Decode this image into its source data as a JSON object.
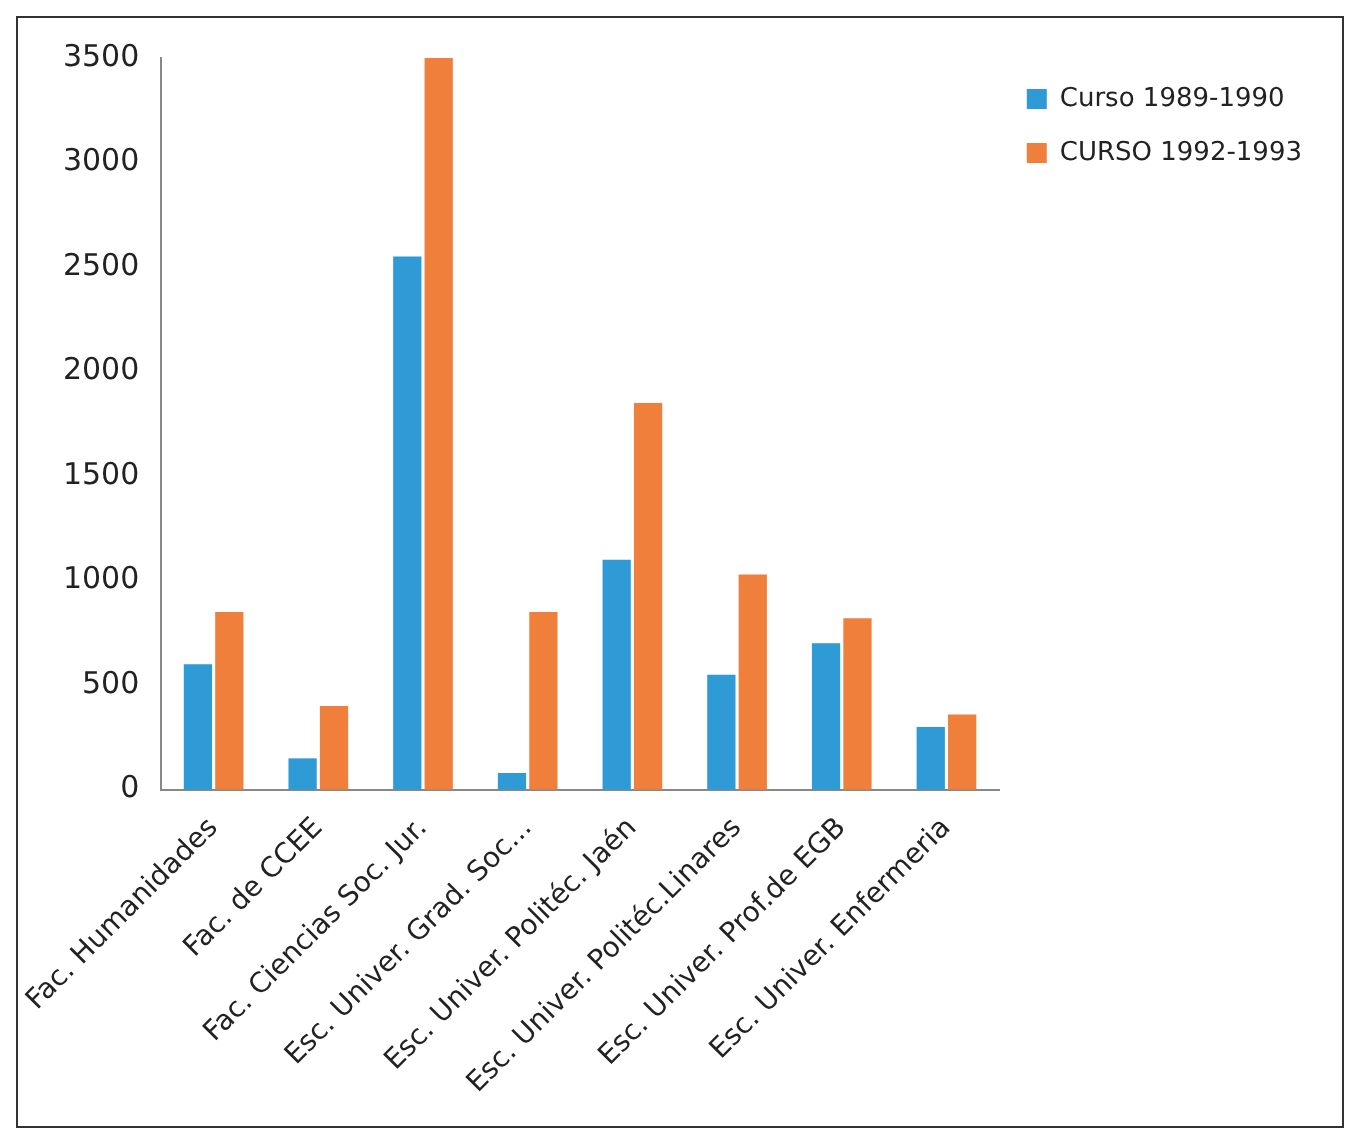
{
  "chart_data": {
    "type": "bar",
    "categories": [
      "Fac. Humanidades",
      "Fac. de CCEE",
      "Fac. Ciencias Soc. Jur.",
      "Esc. Univer. Grad. Soc...",
      "Esc. Univer. Politéc. Jaén",
      "Esc. Univer. Politéc.Linares",
      "Esc. Univer. Prof.de EGB",
      "Esc. Univer. Enfermeria"
    ],
    "series": [
      {
        "name": "Curso 1989-1990",
        "color": "#2e9bd6",
        "values": [
          600,
          150,
          2550,
          80,
          1100,
          550,
          700,
          300
        ]
      },
      {
        "name": "CURSO 1992-1993",
        "color": "#f07f3c",
        "values": [
          850,
          400,
          3500,
          850,
          1850,
          1030,
          820,
          360
        ]
      }
    ],
    "ylim": [
      0,
      3500
    ],
    "yticks": [
      0,
      500,
      1000,
      1500,
      2000,
      2500,
      3000,
      3500
    ],
    "grid": false,
    "legend": "top right"
  }
}
